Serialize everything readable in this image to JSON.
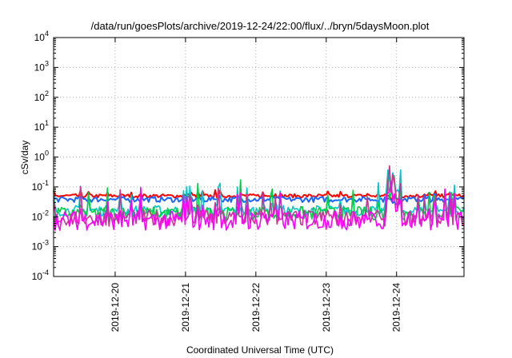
{
  "chart_data": {
    "type": "line",
    "title": "/data/run/goesPlots/archive/2019-12-24/22:00/flux/../bryn/5daysMoon.plot",
    "xlabel": "Coordinated Universal Time (UTC)",
    "ylabel": "cSv/day",
    "yscale": "log",
    "ylim": [
      0.0001,
      10000
    ],
    "y_ticks": [
      {
        "base": "10",
        "exp": "-4"
      },
      {
        "base": "10",
        "exp": "-3"
      },
      {
        "base": "10",
        "exp": "-2"
      },
      {
        "base": "10",
        "exp": "-1"
      },
      {
        "base": "10",
        "exp": "0"
      },
      {
        "base": "10",
        "exp": "1"
      },
      {
        "base": "10",
        "exp": "2"
      },
      {
        "base": "10",
        "exp": "3"
      },
      {
        "base": "10",
        "exp": "4"
      }
    ],
    "xlim": [
      "2019-12-19 03:00",
      "2019-12-24 23:00"
    ],
    "x_ticks": [
      "2019-12-20",
      "2019-12-21",
      "2019-12-22",
      "2019-12-23",
      "2019-12-24"
    ],
    "grid": true,
    "series_colors": [
      "#ff0000",
      "#1e64ff",
      "#00c8c8",
      "#00cc44",
      "#cc3399",
      "#ff00ff"
    ],
    "series_levels": [
      0.05,
      0.038,
      0.016,
      0.013,
      0.009,
      0.0075
    ]
  }
}
